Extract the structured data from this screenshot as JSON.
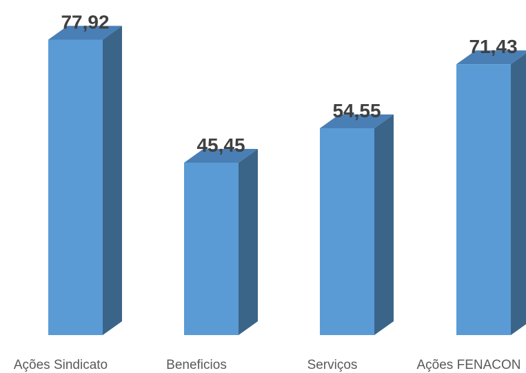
{
  "chart_data": {
    "type": "bar",
    "style": "3d-column",
    "categories": [
      "Ações Sindicato",
      "Beneficios",
      "Serviços",
      "Ações FENACON"
    ],
    "values": [
      77.92,
      45.45,
      54.55,
      71.43
    ],
    "data_labels": [
      "77,92",
      "45,45",
      "54,55",
      "71,43"
    ],
    "title": "",
    "xlabel": "",
    "ylabel": "",
    "ylim": [
      0,
      80
    ],
    "grid": false,
    "legend": "none",
    "colors": {
      "front": "#5B9BD5",
      "side": "#3A6589",
      "top": "#4A7FB5",
      "label": "#404040",
      "category": "#595959"
    }
  }
}
